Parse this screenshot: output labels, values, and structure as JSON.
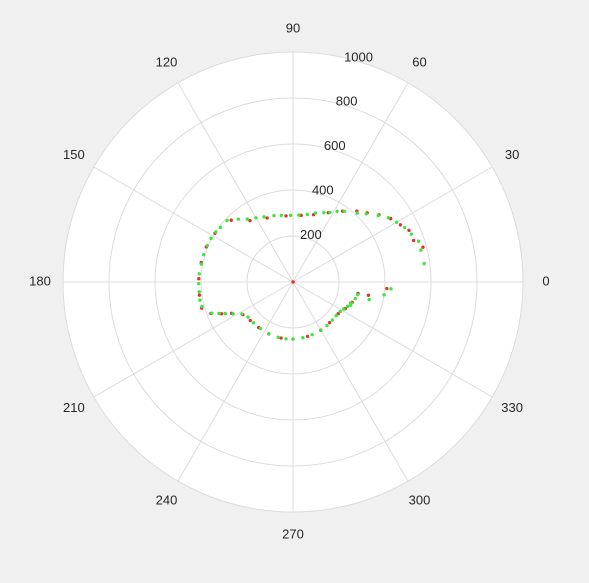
{
  "chart_data": {
    "type": "scatter",
    "coordinate_system": "polar",
    "title": "",
    "background_color": "#f0f0f0",
    "plot_background_color": "#ffffff",
    "grid_color": "#dcdcdc",
    "grid": true,
    "r_range": [
      0,
      1000
    ],
    "r_ticks": [
      200,
      400,
      600,
      800,
      1000
    ],
    "r_tick_labels": [
      "200",
      "400",
      "600",
      "800",
      "1000"
    ],
    "theta_ticks": [
      0,
      30,
      60,
      90,
      120,
      150,
      180,
      210,
      240,
      270,
      300,
      330
    ],
    "theta_tick_labels": [
      "0",
      "30",
      "60",
      "90",
      "120",
      "150",
      "180",
      "210",
      "240",
      "270",
      "300",
      "330"
    ],
    "series": [
      {
        "color": "#e53030",
        "points": [
          [
            0,
            0
          ],
          [
            268,
            -20
          ],
          [
            333,
            -10
          ],
          [
            409,
            -4
          ],
          [
            585,
            15
          ],
          [
            555,
            19
          ],
          [
            552,
            24
          ],
          [
            529,
            28
          ],
          [
            506,
            33
          ],
          [
            474,
            38
          ],
          [
            441,
            43
          ],
          [
            415,
            48
          ],
          [
            376,
            55
          ],
          [
            338,
            63
          ],
          [
            306,
            73
          ],
          [
            292,
            83
          ],
          [
            289,
            96
          ],
          [
            300,
            112
          ],
          [
            326,
            125
          ],
          [
            380,
            135
          ],
          [
            400,
            148
          ],
          [
            407,
            158
          ],
          [
            408,
            168
          ],
          [
            410,
            178
          ],
          [
            411,
            188
          ],
          [
            413,
            196
          ],
          [
            382,
            201
          ],
          [
            340,
            204
          ],
          [
            300,
            207
          ],
          [
            260,
            213
          ],
          [
            250,
            222
          ],
          [
            248,
            233
          ],
          [
            249,
            245
          ],
          [
            249,
            258
          ],
          [
            248,
            270
          ],
          [
            245,
            285
          ],
          [
            242,
            300
          ],
          [
            238,
            312
          ],
          [
            240,
            325
          ],
          [
            255,
            333
          ],
          [
            272,
            341
          ],
          [
            287,
            350
          ]
        ]
      },
      {
        "color": "#3ce63c",
        "points": [
          [
            270,
            -22
          ],
          [
            340,
            -13
          ],
          [
            400,
            -8
          ],
          [
            427,
            -4
          ],
          [
            576,
            8
          ],
          [
            573,
            14
          ],
          [
            574,
            18
          ],
          [
            555,
            22
          ],
          [
            540,
            26
          ],
          [
            520,
            30
          ],
          [
            500,
            34
          ],
          [
            470,
            38
          ],
          [
            435,
            43
          ],
          [
            410,
            47
          ],
          [
            380,
            54
          ],
          [
            362,
            58
          ],
          [
            342,
            62
          ],
          [
            330,
            66
          ],
          [
            315,
            72
          ],
          [
            300,
            78
          ],
          [
            292,
            85
          ],
          [
            290,
            92
          ],
          [
            294,
            100
          ],
          [
            300,
            106
          ],
          [
            310,
            114
          ],
          [
            322,
            120
          ],
          [
            338,
            126
          ],
          [
            362,
            131
          ],
          [
            392,
            137
          ],
          [
            395,
            143
          ],
          [
            400,
            147
          ],
          [
            404,
            152
          ],
          [
            405,
            157
          ],
          [
            406,
            163
          ],
          [
            406,
            169
          ],
          [
            409,
            175
          ],
          [
            410,
            181
          ],
          [
            410,
            186
          ],
          [
            412,
            191
          ],
          [
            410,
            195
          ],
          [
            378,
            201
          ],
          [
            350,
            203
          ],
          [
            325,
            205
          ],
          [
            295,
            208
          ],
          [
            262,
            212
          ],
          [
            248,
            218
          ],
          [
            247,
            226
          ],
          [
            247,
            235
          ],
          [
            248,
            245
          ],
          [
            249,
            255
          ],
          [
            249,
            263
          ],
          [
            248,
            270
          ],
          [
            246,
            280
          ],
          [
            244,
            290
          ],
          [
            243,
            300
          ],
          [
            240,
            308
          ],
          [
            238,
            316
          ],
          [
            238,
            322
          ],
          [
            242,
            328
          ],
          [
            250,
            332
          ],
          [
            260,
            336
          ],
          [
            270,
            340
          ],
          [
            280,
            345
          ],
          [
            286,
            349
          ]
        ]
      }
    ]
  }
}
